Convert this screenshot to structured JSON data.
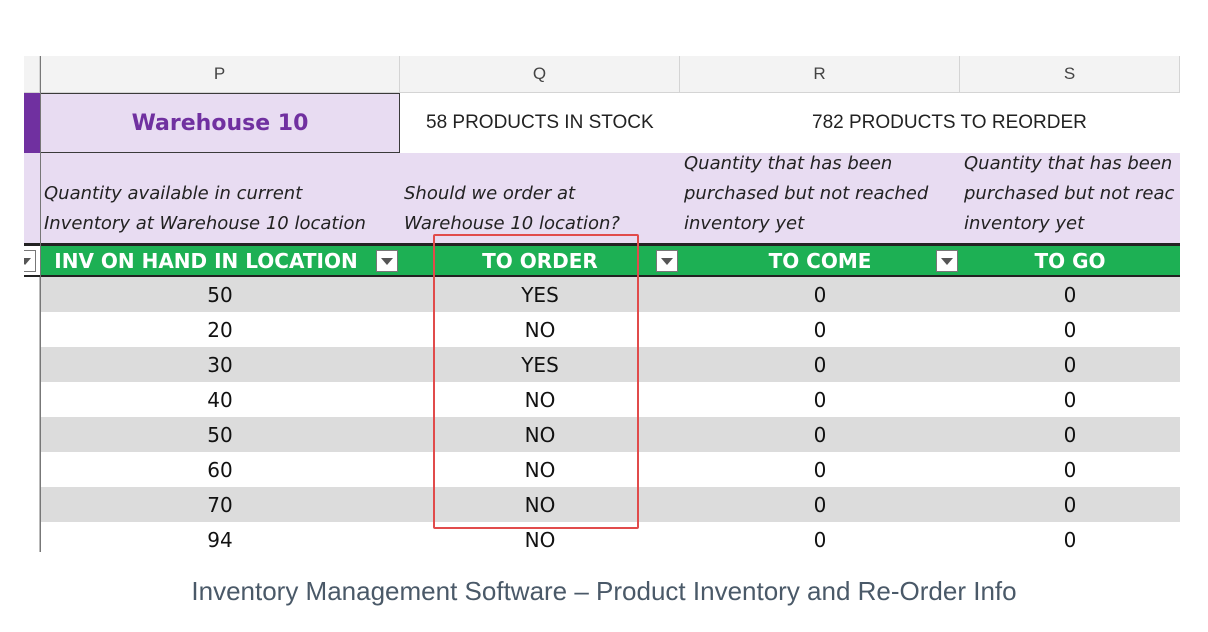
{
  "columns": [
    {
      "letter": "P"
    },
    {
      "letter": "Q"
    },
    {
      "letter": "R"
    },
    {
      "letter": "S"
    }
  ],
  "band": {
    "warehouse": "Warehouse 10",
    "in_stock": "58 PRODUCTS IN STOCK",
    "to_reorder": "782 PRODUCTS TO REORDER"
  },
  "descriptions": {
    "p": [
      "Quantity available in current",
      "Inventory at Warehouse 10 location"
    ],
    "q": [
      "Should we order at",
      "Warehouse 10 location?"
    ],
    "r": [
      "Quantity that has been",
      "purchased but not reached",
      "inventory yet"
    ],
    "s": [
      "Quantity that has been",
      "purchased but not reac",
      "inventory yet"
    ]
  },
  "headers": {
    "p": "INV ON HAND IN LOCATION",
    "q": "TO ORDER",
    "r": "TO COME",
    "s": "TO GO"
  },
  "rows": [
    {
      "inv": "50",
      "order": "YES",
      "come": "0",
      "go": "0"
    },
    {
      "inv": "20",
      "order": "NO",
      "come": "0",
      "go": "0"
    },
    {
      "inv": "30",
      "order": "YES",
      "come": "0",
      "go": "0"
    },
    {
      "inv": "40",
      "order": "NO",
      "come": "0",
      "go": "0"
    },
    {
      "inv": "50",
      "order": "NO",
      "come": "0",
      "go": "0"
    },
    {
      "inv": "60",
      "order": "NO",
      "come": "0",
      "go": "0"
    },
    {
      "inv": "70",
      "order": "NO",
      "come": "0",
      "go": "0"
    },
    {
      "inv": "94",
      "order": "NO",
      "come": "0",
      "go": "0"
    }
  ],
  "caption": "Inventory Management Software – Product Inventory and Re-Order Info",
  "colors": {
    "header_green": "#1db054",
    "band_purple": "#7030a0",
    "band_lavender": "#e8dcf2",
    "highlight_red": "#e14b4b"
  },
  "icons": {
    "filter": "filter-dropdown-icon"
  }
}
